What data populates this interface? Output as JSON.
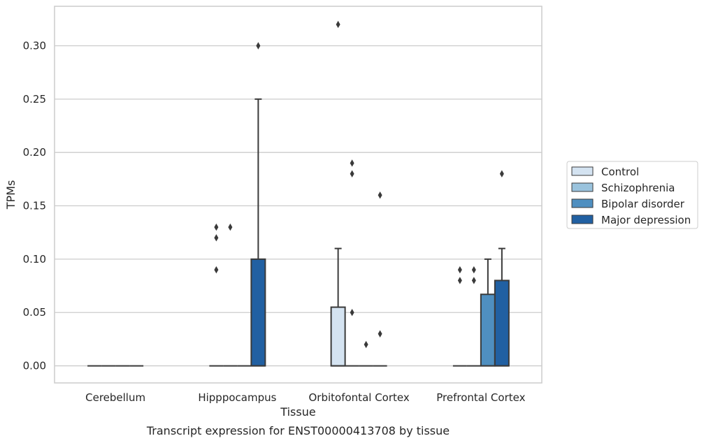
{
  "chart_data": {
    "type": "box",
    "caption": "Transcript expression for ENST00000413708 by tissue",
    "xlabel": "Tissue",
    "ylabel": "TPMs",
    "categories": [
      "Cerebellum",
      "Hipppocampus",
      "Orbitofontal Cortex",
      "Prefrontal Cortex"
    ],
    "ylim": [
      -0.016,
      0.337
    ],
    "yticks": [
      0.0,
      0.05,
      0.1,
      0.15,
      0.2,
      0.25,
      0.3
    ],
    "ytick_labels": [
      "0.00",
      "0.05",
      "0.10",
      "0.15",
      "0.20",
      "0.25",
      "0.30"
    ],
    "grid": true,
    "legend_position": "right",
    "series": [
      {
        "name": "Control",
        "color": "#d4e3f1",
        "boxes": [
          {
            "q1": 0,
            "median": 0,
            "q3": 0,
            "whisker_low": 0,
            "whisker_high": 0,
            "outliers": []
          },
          {
            "q1": 0,
            "median": 0,
            "q3": 0,
            "whisker_low": 0,
            "whisker_high": 0,
            "outliers": [
              0.09,
              0.12,
              0.13
            ]
          },
          {
            "q1": 0,
            "median": 0,
            "q3": 0.055,
            "whisker_low": 0,
            "whisker_high": 0.11,
            "outliers": [
              0.32
            ]
          },
          {
            "q1": 0,
            "median": 0,
            "q3": 0,
            "whisker_low": 0,
            "whisker_high": 0,
            "outliers": [
              0.08,
              0.09
            ]
          }
        ]
      },
      {
        "name": "Schizophrenia",
        "color": "#9ac3dd",
        "boxes": [
          {
            "q1": 0,
            "median": 0,
            "q3": 0,
            "whisker_low": 0,
            "whisker_high": 0,
            "outliers": []
          },
          {
            "q1": 0,
            "median": 0,
            "q3": 0,
            "whisker_low": 0,
            "whisker_high": 0,
            "outliers": [
              0.13
            ]
          },
          {
            "q1": 0,
            "median": 0,
            "q3": 0,
            "whisker_low": 0,
            "whisker_high": 0,
            "outliers": [
              0.05,
              0.18,
              0.19
            ]
          },
          {
            "q1": 0,
            "median": 0,
            "q3": 0,
            "whisker_low": 0,
            "whisker_high": 0,
            "outliers": [
              0.08,
              0.09
            ]
          }
        ]
      },
      {
        "name": "Bipolar disorder",
        "color": "#4f8fc0",
        "boxes": [
          {
            "q1": 0,
            "median": 0,
            "q3": 0,
            "whisker_low": 0,
            "whisker_high": 0,
            "outliers": []
          },
          {
            "q1": 0,
            "median": 0,
            "q3": 0,
            "whisker_low": 0,
            "whisker_high": 0,
            "outliers": []
          },
          {
            "q1": 0,
            "median": 0,
            "q3": 0,
            "whisker_low": 0,
            "whisker_high": 0,
            "outliers": [
              0.02
            ]
          },
          {
            "q1": 0,
            "median": 0,
            "q3": 0.067,
            "whisker_low": 0,
            "whisker_high": 0.1,
            "outliers": []
          }
        ]
      },
      {
        "name": "Major depression",
        "color": "#2160a2",
        "boxes": [
          {
            "q1": 0,
            "median": 0,
            "q3": 0,
            "whisker_low": 0,
            "whisker_high": 0,
            "outliers": []
          },
          {
            "q1": 0,
            "median": 0,
            "q3": 0.1,
            "whisker_low": 0,
            "whisker_high": 0.25,
            "outliers": [
              0.3
            ]
          },
          {
            "q1": 0,
            "median": 0,
            "q3": 0,
            "whisker_low": 0,
            "whisker_high": 0,
            "outliers": [
              0.03,
              0.16
            ]
          },
          {
            "q1": 0,
            "median": 0,
            "q3": 0.08,
            "whisker_low": 0,
            "whisker_high": 0.11,
            "outliers": [
              0.18
            ]
          }
        ]
      }
    ]
  }
}
